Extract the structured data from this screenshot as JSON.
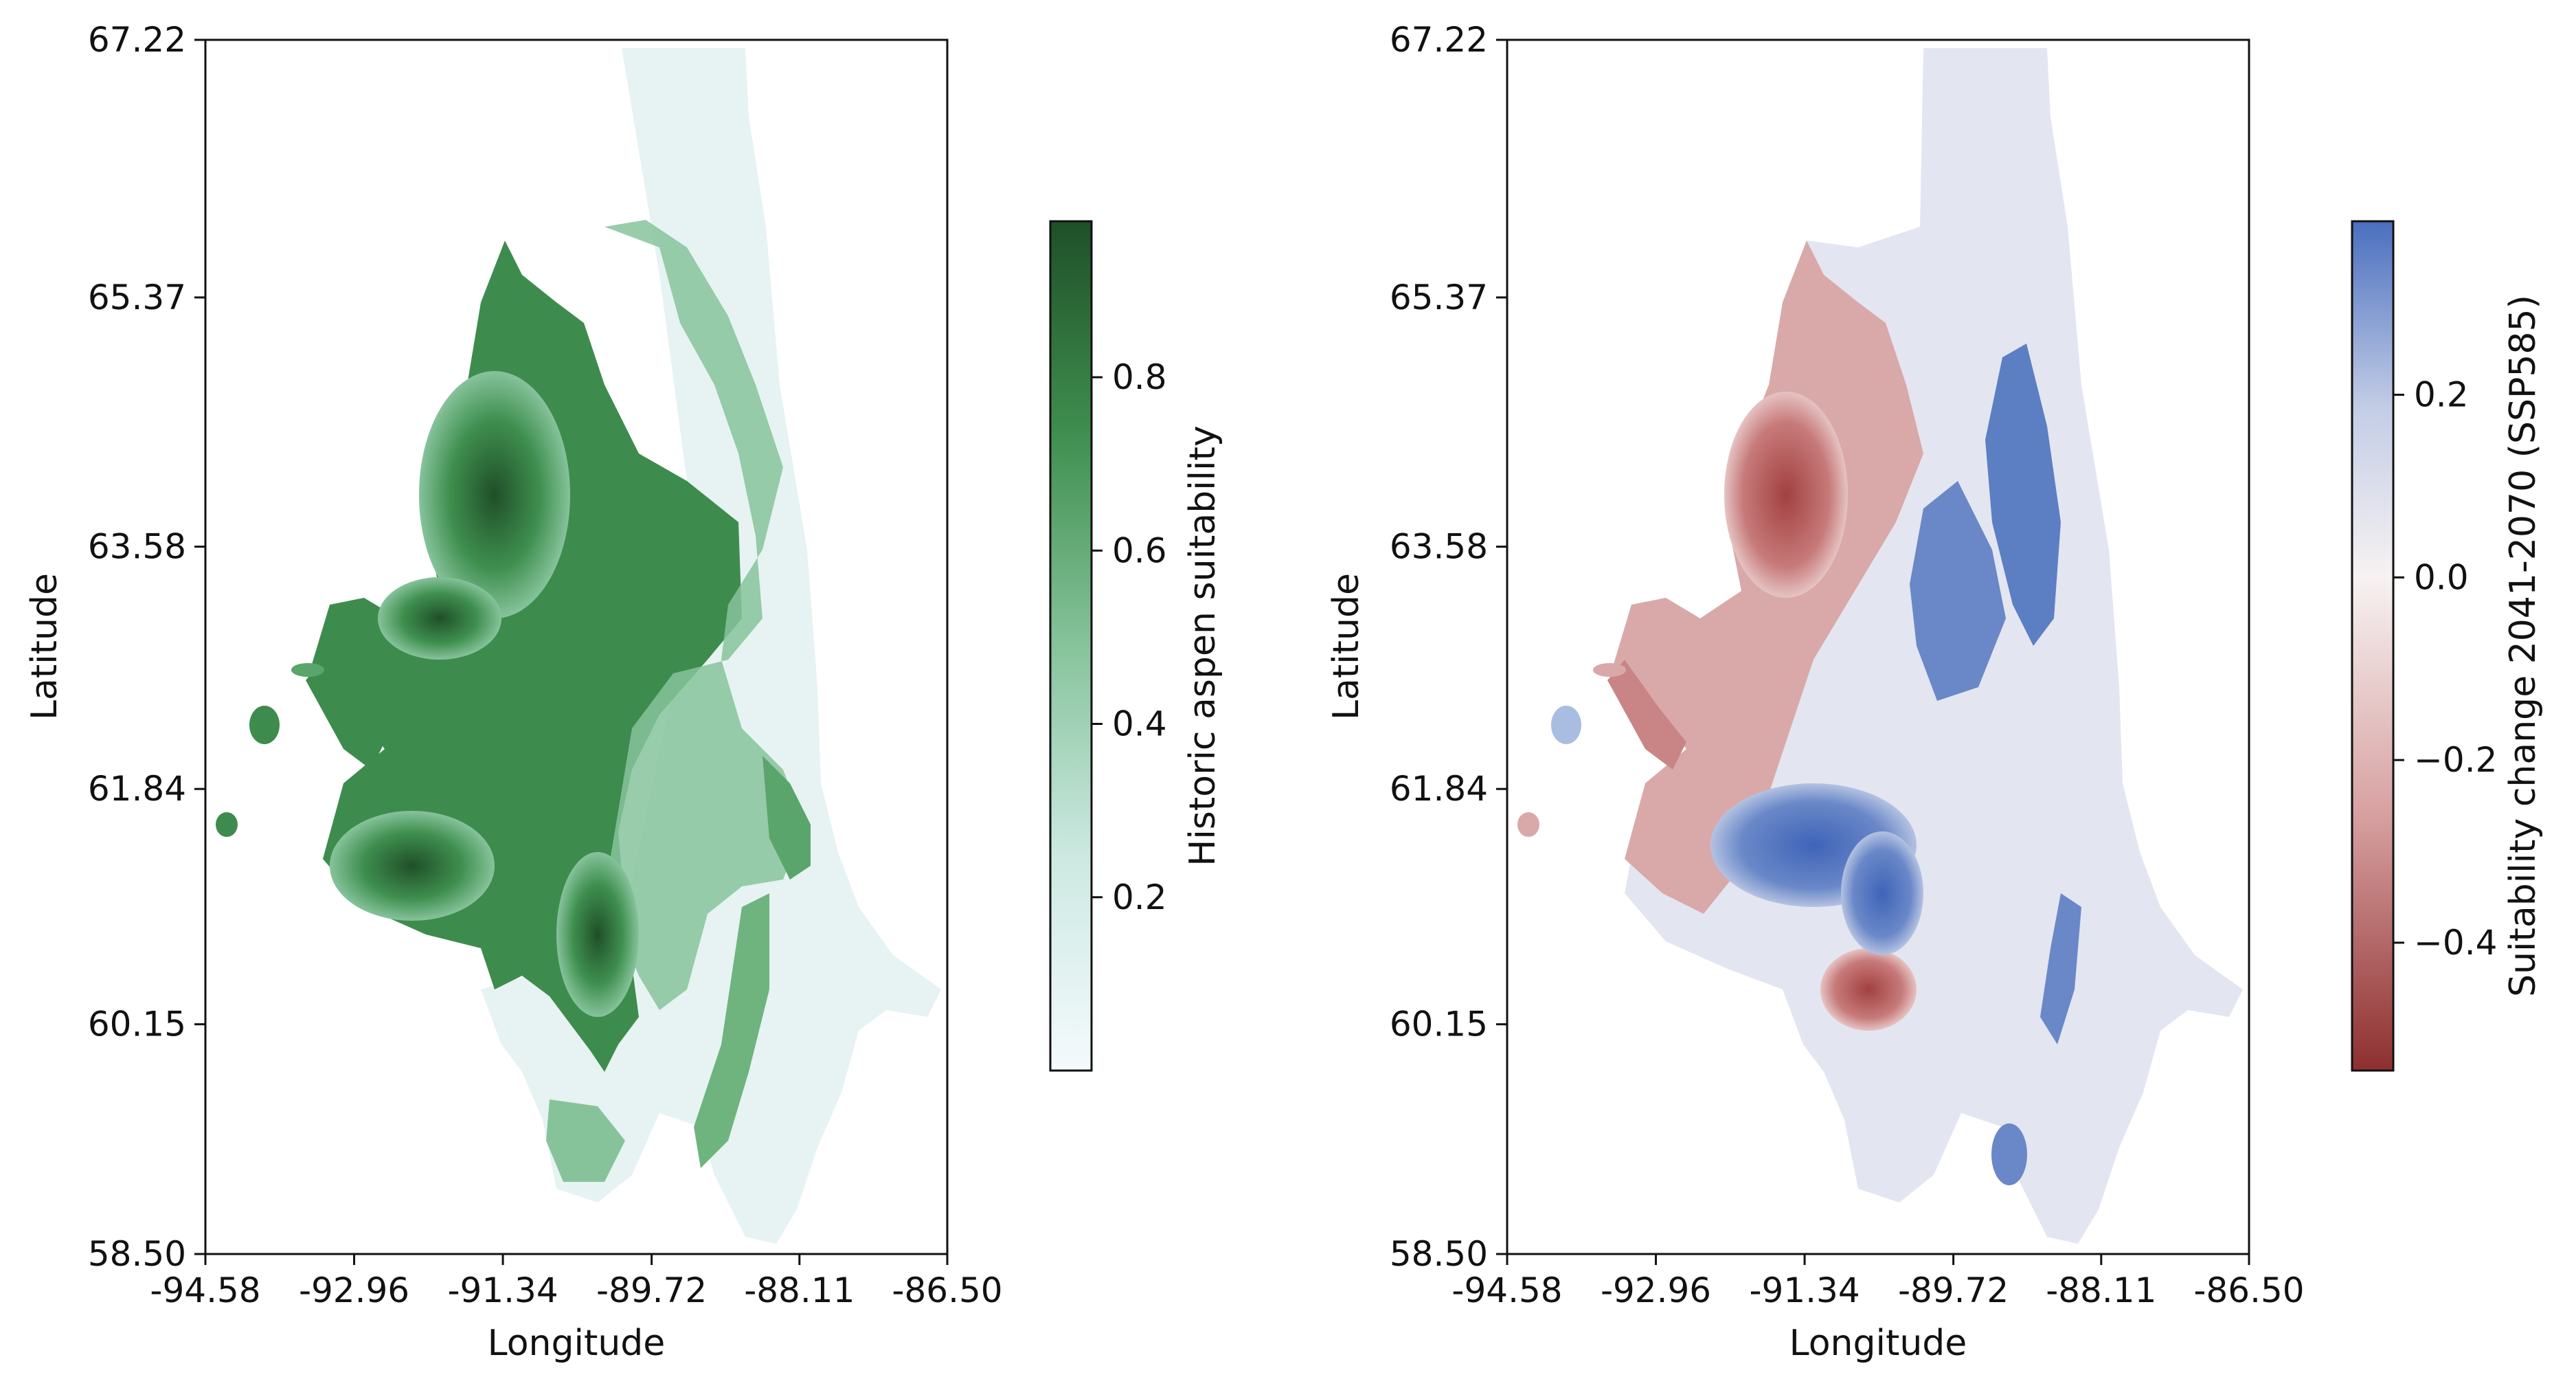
{
  "chart_data": [
    {
      "type": "heatmap",
      "xlabel": "Longitude",
      "ylabel": "Latitude",
      "x_ticks": [
        "-94.58",
        "-92.96",
        "-91.34",
        "-89.72",
        "-88.11",
        "-86.50"
      ],
      "y_ticks": [
        "67.22",
        "65.37",
        "63.58",
        "61.84",
        "60.15",
        "58.50"
      ],
      "xlim": [
        -94.58,
        -86.5
      ],
      "ylim": [
        58.5,
        67.22
      ],
      "colorbar": {
        "label": "Historic aspen suitability",
        "ticks": [
          "0.2",
          "0.4",
          "0.6",
          "0.8"
        ],
        "tick_values": [
          0.2,
          0.4,
          0.6,
          0.8
        ],
        "range": [
          0.0,
          0.98
        ],
        "colors": [
          "#f4fafd",
          "#cde9e2",
          "#86c39b",
          "#3f8f4f",
          "#1f4f28"
        ]
      }
    },
    {
      "type": "heatmap",
      "xlabel": "Longitude",
      "ylabel": "Latitude",
      "x_ticks": [
        "-94.58",
        "-92.96",
        "-91.34",
        "-89.72",
        "-88.11",
        "-86.50"
      ],
      "y_ticks": [
        "67.22",
        "65.37",
        "63.58",
        "61.84",
        "60.15",
        "58.50"
      ],
      "xlim": [
        -94.58,
        -86.5
      ],
      "ylim": [
        58.5,
        67.22
      ],
      "colorbar": {
        "label": "Suitability change 2041-2070 (SSP585)",
        "ticks": [
          "−0.4",
          "−0.2",
          "0.0",
          "0.2"
        ],
        "tick_values": [
          -0.4,
          -0.2,
          0.0,
          0.2
        ],
        "range": [
          -0.54,
          0.39
        ],
        "colors": [
          "#8e2f2f",
          "#d7a0a0",
          "#f7f2f2",
          "#c3cde6",
          "#4a6fbf"
        ]
      }
    }
  ]
}
